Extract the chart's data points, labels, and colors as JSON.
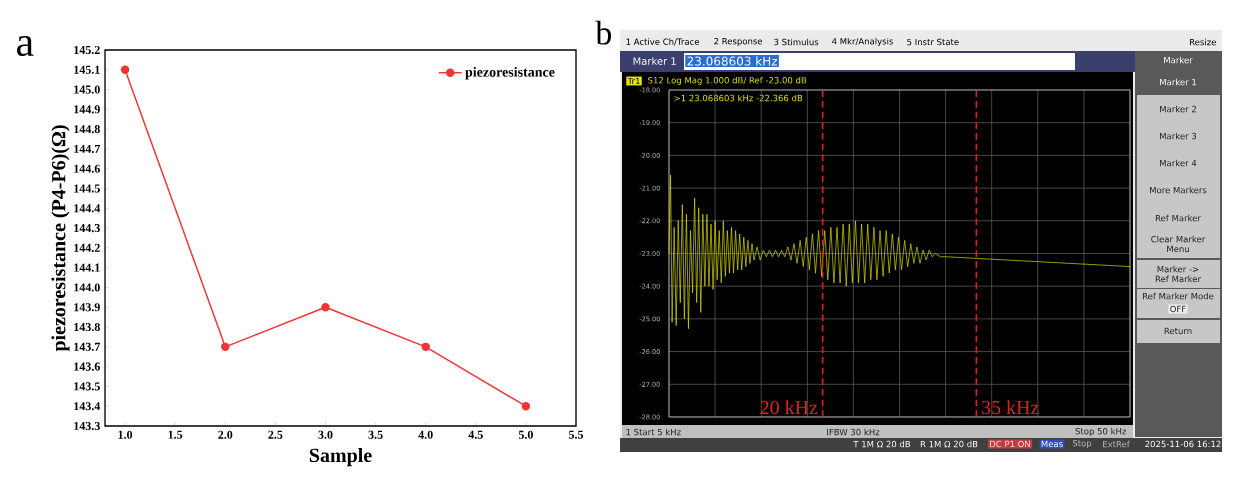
{
  "chart_data": [
    {
      "type": "line",
      "title": "a",
      "xlabel": "Sample",
      "ylabel": "piezoresistance (P4-P6)(Ω)",
      "x": [
        1,
        2,
        3,
        4,
        5
      ],
      "xlim": [
        0.8,
        5.5
      ],
      "xticks": [
        {
          "value": 1,
          "label": "1.0"
        },
        {
          "value": 1.5,
          "label": "1.5"
        },
        {
          "value": 2,
          "label": "2.0"
        },
        {
          "value": 2.5,
          "label": "2.5"
        },
        {
          "value": 3,
          "label": "3.0"
        },
        {
          "value": 3.5,
          "label": "3.5"
        },
        {
          "value": 4,
          "label": "4.0"
        },
        {
          "value": 4.5,
          "label": "4.5"
        },
        {
          "value": 5,
          "label": "5.0"
        },
        {
          "value": 5.5,
          "label": "5.5"
        }
      ],
      "ylim": [
        143.3,
        145.2
      ],
      "yticks": [
        143.3,
        143.4,
        143.5,
        143.6,
        143.7,
        143.8,
        143.9,
        {
          "value": 144,
          "label": "144.0"
        },
        144.1,
        144.2,
        144.3,
        144.4,
        144.5,
        144.6,
        144.7,
        144.8,
        144.9,
        {
          "value": 145,
          "label": "145.0"
        },
        145.1,
        145.2
      ],
      "series": [
        {
          "name": "piezoresistance",
          "color": "#f03434",
          "values": [
            145.1,
            143.7,
            143.9,
            143.7,
            143.4
          ]
        }
      ],
      "legend": "top right",
      "marker": "circle",
      "grid": false
    },
    {
      "type": "line",
      "title": "b",
      "xlim": [
        5,
        50
      ],
      "ylim": [
        -28,
        -18
      ],
      "tick_labels": "y",
      "grid": true,
      "marker": "none",
      "xticks": [
        {
          "value": 5,
          "label": null
        },
        {
          "value": 9.5,
          "label": null
        },
        {
          "value": 14,
          "label": null
        },
        {
          "value": 18.5,
          "label": null
        },
        {
          "value": 23,
          "label": null
        },
        {
          "value": 27.5,
          "label": null
        },
        {
          "value": 32,
          "label": null
        },
        {
          "value": 36.5,
          "label": null
        },
        {
          "value": 41,
          "label": null
        },
        {
          "value": 45.5,
          "label": null
        },
        {
          "value": 50,
          "label": null
        }
      ],
      "yticks": [
        {
          "value": -28,
          "label": "-28.00"
        },
        {
          "value": -27,
          "label": "-27.00"
        },
        {
          "value": -26,
          "label": "-26.00"
        },
        {
          "value": -25,
          "label": "-25.00"
        },
        {
          "value": -24,
          "label": "-24.00"
        },
        {
          "value": -23,
          "label": "-23.00"
        },
        {
          "value": -22,
          "label": "-22.00"
        },
        {
          "value": -21,
          "label": "-21.00"
        },
        {
          "value": -20,
          "label": "-20.00"
        },
        {
          "value": -19,
          "label": "-19.00"
        },
        {
          "value": -18,
          "label": "-18.00"
        }
      ],
      "series": [
        {
          "color": "#e6e600",
          "x": [
            5.0,
            5.15,
            5.3,
            5.5,
            5.7,
            5.9,
            6.1,
            6.3,
            6.5,
            6.7,
            6.9,
            7.1,
            7.3,
            7.5,
            7.7,
            7.9,
            8.1,
            8.3,
            8.5,
            8.7,
            8.9,
            9.1,
            9.3,
            9.5,
            9.7,
            9.9,
            10.1,
            10.3,
            10.5,
            10.7,
            10.9,
            11.1,
            11.3,
            11.5,
            11.7,
            11.9,
            12.1,
            12.3,
            12.5,
            12.7,
            12.9,
            13.1,
            13.3,
            13.6,
            13.9,
            14.2,
            14.5,
            14.8,
            15.1,
            15.4,
            15.7,
            16.0,
            16.3,
            16.6,
            16.9,
            17.2,
            17.5,
            17.8,
            18.1,
            18.4,
            18.7,
            19.0,
            19.3,
            19.6,
            19.9,
            20.2,
            20.5,
            20.8,
            21.1,
            21.4,
            21.7,
            22.0,
            22.3,
            22.6,
            22.9,
            23.2,
            23.5,
            23.8,
            24.1,
            24.4,
            24.7,
            25.0,
            25.3,
            25.6,
            25.9,
            26.2,
            26.5,
            26.8,
            27.1,
            27.4,
            27.7,
            28.0,
            28.3,
            28.6,
            28.9,
            29.2,
            29.5,
            29.8,
            30.1,
            30.4,
            30.7,
            31.0,
            31.5,
            32.0,
            50.0
          ],
          "values": [
            -23.0,
            -20.6,
            -25.1,
            -22.2,
            -25.2,
            -22.0,
            -24.5,
            -21.5,
            -25.0,
            -21.8,
            -25.3,
            -22.3,
            -24.2,
            -21.3,
            -24.5,
            -21.6,
            -24.8,
            -21.8,
            -24.0,
            -21.8,
            -24.0,
            -22.1,
            -24.1,
            -22.0,
            -23.8,
            -22.3,
            -23.9,
            -22.0,
            -23.7,
            -22.3,
            -23.6,
            -22.2,
            -23.6,
            -22.3,
            -23.5,
            -22.4,
            -23.5,
            -22.5,
            -23.4,
            -22.6,
            -23.3,
            -22.7,
            -23.2,
            -22.8,
            -23.2,
            -22.9,
            -23.1,
            -22.9,
            -23.1,
            -22.9,
            -23.1,
            -22.9,
            -23.1,
            -22.8,
            -23.2,
            -22.7,
            -23.3,
            -22.6,
            -23.4,
            -22.5,
            -23.5,
            -22.4,
            -23.6,
            -22.3,
            -23.7,
            -22.3,
            -23.8,
            -22.2,
            -23.9,
            -22.2,
            -23.9,
            -22.1,
            -24.0,
            -22.1,
            -23.9,
            -22.0,
            -23.9,
            -22.1,
            -23.9,
            -22.1,
            -23.8,
            -22.2,
            -23.8,
            -22.3,
            -23.7,
            -22.3,
            -23.6,
            -22.4,
            -23.5,
            -22.5,
            -23.5,
            -22.6,
            -23.4,
            -22.7,
            -23.3,
            -22.8,
            -23.3,
            -22.9,
            -23.2,
            -22.9,
            -23.1,
            -23.0,
            -23.1,
            -23.1,
            -23.4
          ]
        }
      ],
      "ref_lines": [
        {
          "axis": "x",
          "value": 20,
          "label": "20 kHz",
          "color": "#e02020",
          "line_style": "dashed"
        },
        {
          "axis": "x",
          "value": 35,
          "label": "35 kHz",
          "color": "#e02020",
          "line_style": "dashed"
        }
      ],
      "annotations": [
        "1 Active Ch/Trace",
        "2 Response",
        "3 Stimulus",
        "4 Mkr/Analysis",
        "5 Instr State",
        "Resize",
        "Marker 1",
        "23.068603 kHz",
        "Tr1",
        "S12 Log Mag 1.000 dB/ Ref -23.00 dB",
        ">1  23.068603 kHz -22.366 dB",
        "Marker",
        "Marker 1",
        "Marker 2",
        "Marker 3",
        "Marker 4",
        "More Markers",
        "Ref Marker",
        "Clear Marker Menu",
        "Marker -> Ref Marker",
        "Ref Marker Mode",
        "OFF",
        "Return",
        "1  Start 5 kHz",
        "IFBW 30 kHz",
        "Stop 50 kHz",
        "T 1M Ω 20 dB",
        "R 1M Ω 20 dB",
        "DC P1 ON",
        "Meas",
        "Stop",
        "ExtRef",
        "2025-11-06 16:12"
      ]
    }
  ]
}
